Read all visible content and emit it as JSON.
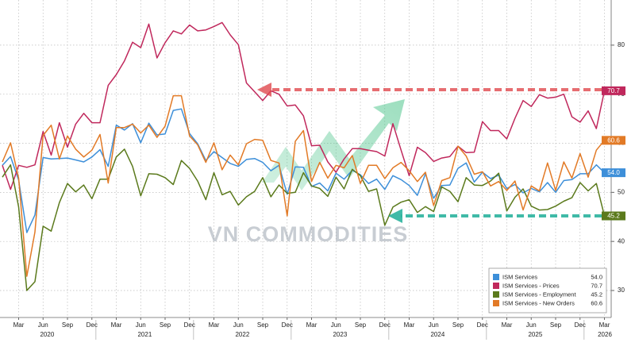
{
  "chart_data": {
    "type": "line",
    "watermark": "VN COMMODITIES",
    "x": [
      "2020-01",
      "2020-02",
      "2020-03",
      "2020-04",
      "2020-05",
      "2020-06",
      "2020-07",
      "2020-08",
      "2020-09",
      "2020-10",
      "2020-11",
      "2020-12",
      "2021-01",
      "2021-02",
      "2021-03",
      "2021-04",
      "2021-05",
      "2021-06",
      "2021-07",
      "2021-08",
      "2021-09",
      "2021-10",
      "2021-11",
      "2021-12",
      "2022-01",
      "2022-02",
      "2022-03",
      "2022-04",
      "2022-05",
      "2022-06",
      "2022-07",
      "2022-08",
      "2022-09",
      "2022-10",
      "2022-11",
      "2022-12",
      "2023-01",
      "2023-02",
      "2023-03",
      "2023-04",
      "2023-05",
      "2023-06",
      "2023-07",
      "2023-08",
      "2023-09",
      "2023-10",
      "2023-11",
      "2023-12",
      "2024-01",
      "2024-02",
      "2024-03",
      "2024-04",
      "2024-05",
      "2024-06",
      "2024-07",
      "2024-08",
      "2024-09",
      "2024-10",
      "2024-11",
      "2024-12",
      "2025-01",
      "2025-02",
      "2025-03",
      "2025-04",
      "2025-05",
      "2025-06",
      "2025-07",
      "2025-08",
      "2025-09",
      "2025-10",
      "2025-11",
      "2025-12",
      "2026-01",
      "2026-02",
      "2026-03"
    ],
    "series": [
      {
        "name": "ISM Services",
        "color": "#3d8fd9",
        "last_value_label": "54.0",
        "values": [
          55.5,
          57.3,
          52.5,
          41.8,
          45.4,
          57.1,
          56.8,
          56.9,
          57.0,
          56.6,
          56.2,
          57.2,
          58.7,
          55.3,
          63.7,
          62.7,
          64.0,
          60.1,
          64.1,
          61.7,
          61.9,
          66.7,
          67.0,
          62.0,
          59.9,
          56.5,
          58.3,
          57.1,
          55.9,
          55.3,
          56.7,
          56.9,
          56.1,
          54.4,
          55.5,
          49.6,
          55.2,
          55.1,
          51.2,
          51.9,
          50.3,
          53.9,
          52.7,
          54.5,
          53.6,
          51.8,
          52.7,
          50.6,
          53.4,
          52.6,
          51.4,
          49.4,
          53.8,
          48.8,
          51.4,
          51.5,
          54.9,
          56.0,
          52.1,
          54.1,
          52.8,
          53.5,
          50.8,
          51.6,
          49.9,
          50.8,
          50.1,
          52.0,
          50.0,
          52.4,
          52.6,
          53.8,
          53.8,
          55.6,
          54.0
        ]
      },
      {
        "name": "ISM Services - Prices",
        "color": "#c0285c",
        "last_value_label": "70.7",
        "values": [
          55.5,
          50.6,
          55.5,
          55.1,
          55.6,
          62.4,
          57.6,
          64.2,
          59.2,
          63.9,
          66.1,
          64.2,
          64.2,
          71.8,
          74.0,
          76.8,
          80.6,
          79.5,
          84.3,
          77.4,
          80.5,
          82.9,
          82.3,
          84.1,
          82.9,
          83.1,
          83.8,
          84.6,
          82.1,
          80.1,
          72.3,
          70.5,
          68.7,
          70.7,
          70.0,
          67.6,
          67.8,
          65.6,
          59.5,
          59.6,
          56.2,
          54.1,
          56.8,
          58.9,
          58.9,
          58.6,
          58.3,
          57.4,
          64.0,
          58.6,
          53.4,
          59.2,
          58.1,
          56.3,
          57.0,
          57.3,
          59.4,
          58.1,
          58.2,
          64.4,
          62.6,
          62.6,
          60.9,
          65.1,
          68.7,
          67.5,
          69.9,
          69.2,
          69.4,
          70.0,
          65.4,
          64.3,
          66.6,
          63.0,
          70.7
        ]
      },
      {
        "name": "ISM Services - Employment",
        "color": "#5b7a1c",
        "last_value_label": "45.2",
        "values": [
          53.1,
          55.6,
          47.0,
          30.0,
          31.8,
          43.1,
          42.1,
          47.9,
          51.8,
          50.1,
          51.5,
          48.7,
          52.7,
          52.7,
          57.2,
          58.8,
          55.3,
          49.3,
          53.8,
          53.7,
          53.0,
          51.6,
          56.5,
          54.9,
          52.3,
          48.5,
          54.0,
          49.5,
          50.2,
          47.4,
          49.1,
          50.2,
          53.0,
          49.1,
          51.5,
          49.8,
          50.0,
          54.0,
          51.3,
          50.8,
          49.2,
          53.1,
          50.7,
          54.7,
          53.4,
          50.2,
          50.7,
          43.3,
          47.0,
          48.0,
          48.5,
          45.9,
          47.1,
          46.1,
          51.1,
          50.2,
          48.1,
          53.0,
          51.5,
          51.4,
          52.3,
          53.9,
          46.2,
          49.0,
          50.7,
          47.2,
          46.4,
          46.5,
          47.2,
          48.2,
          48.9,
          52.0,
          50.3,
          51.8,
          45.2
        ]
      },
      {
        "name": "ISM Services - New Orders",
        "color": "#e27a26",
        "last_value_label": "60.6",
        "values": [
          56.2,
          60.1,
          52.9,
          32.9,
          41.9,
          61.6,
          63.7,
          56.8,
          61.5,
          58.8,
          57.2,
          58.6,
          61.8,
          51.9,
          63.2,
          63.2,
          63.9,
          62.1,
          63.7,
          61.2,
          63.5,
          69.7,
          69.7,
          61.5,
          59.7,
          56.1,
          60.1,
          54.6,
          57.6,
          55.6,
          59.9,
          60.8,
          60.6,
          56.5,
          56.0,
          45.2,
          60.4,
          62.6,
          52.2,
          56.1,
          52.9,
          55.5,
          55.0,
          57.5,
          51.8,
          55.5,
          55.5,
          52.8,
          55.0,
          56.1,
          54.4,
          52.2,
          54.1,
          47.3,
          52.4,
          53.0,
          59.4,
          57.4,
          53.7,
          54.2,
          51.3,
          52.2,
          50.4,
          52.3,
          46.4,
          51.3,
          50.3,
          56.0,
          50.4,
          56.2,
          52.9,
          57.9,
          53.1,
          58.6,
          60.6
        ]
      }
    ],
    "ylim": [
      24.5,
      89.2
    ],
    "yticks": [
      30,
      40,
      50,
      60,
      70,
      80
    ],
    "xticks": [
      {
        "value": "2020-03",
        "label": "Mar"
      },
      {
        "value": "2020-06",
        "label": "Jun"
      },
      {
        "value": "2020-09",
        "label": "Sep"
      },
      {
        "value": "2020-12",
        "label": "Dec"
      },
      {
        "value": "2021-03",
        "label": "Mar"
      },
      {
        "value": "2021-06",
        "label": "Jun"
      },
      {
        "value": "2021-09",
        "label": "Sep"
      },
      {
        "value": "2021-12",
        "label": "Dec"
      },
      {
        "value": "2022-03",
        "label": "Mar"
      },
      {
        "value": "2022-06",
        "label": "Jun"
      },
      {
        "value": "2022-09",
        "label": "Sep"
      },
      {
        "value": "2022-12",
        "label": "Dec"
      },
      {
        "value": "2023-03",
        "label": "Mar"
      },
      {
        "value": "2023-06",
        "label": "Jun"
      },
      {
        "value": "2023-09",
        "label": "Sep"
      },
      {
        "value": "2023-12",
        "label": "Dec"
      },
      {
        "value": "2024-03",
        "label": "Mar"
      },
      {
        "value": "2024-06",
        "label": "Jun"
      },
      {
        "value": "2024-09",
        "label": "Sep"
      },
      {
        "value": "2024-12",
        "label": "Dec"
      },
      {
        "value": "2025-03",
        "label": "Mar"
      },
      {
        "value": "2025-06",
        "label": "Jun"
      },
      {
        "value": "2025-09",
        "label": "Sep"
      },
      {
        "value": "2025-12",
        "label": "Dec"
      },
      {
        "value": "2026-03",
        "label": "Mar"
      }
    ],
    "year_labels": [
      "2020",
      "2021",
      "2022",
      "2023",
      "2024",
      "2025",
      "2026"
    ],
    "grid": true,
    "legend": "lower right"
  }
}
